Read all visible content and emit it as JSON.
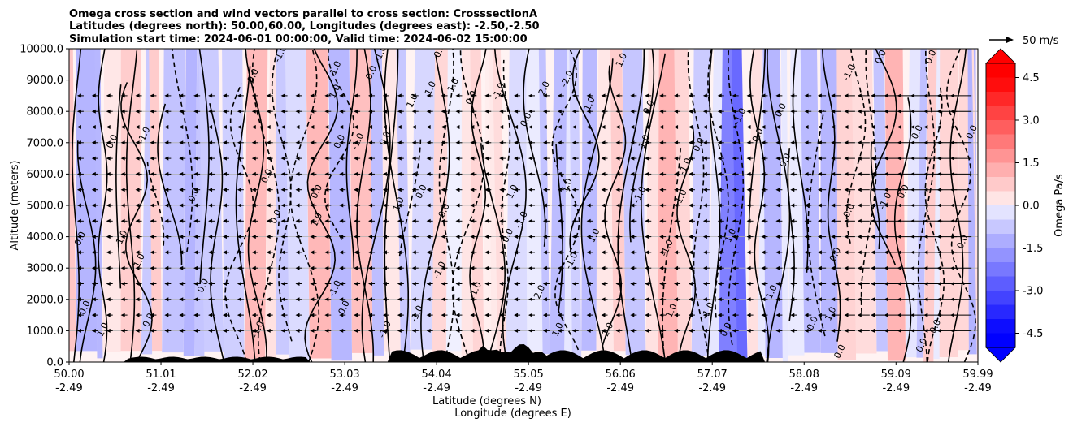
{
  "chart_data": {
    "type": "contour",
    "title_lines": [
      "Omega cross section and wind vectors parallel to cross section: CrosssectionA",
      "Latitudes (degrees north): 50.00,60.00, Longitudes (degrees east): -2.50,-2.50",
      "Simulation start time: 2024-06-01 00:00:00, Valid time: 2024-06-02 15:00:00"
    ],
    "ylabel": "Altitude (meters)",
    "xlabel_lat": "Latitude (degrees N)",
    "xlabel_lon": "Longitude (degrees E)",
    "ylim": [
      0,
      10000
    ],
    "y_ticks": [
      "0.0",
      "1000.0",
      "2000.0",
      "3000.0",
      "4000.0",
      "5000.0",
      "6000.0",
      "7000.0",
      "8000.0",
      "9000.0",
      "10000.0"
    ],
    "y_tick_values": [
      0,
      1000,
      2000,
      3000,
      4000,
      5000,
      6000,
      7000,
      8000,
      9000,
      10000
    ],
    "xlim": [
      50.0,
      59.99
    ],
    "x_tick_values": [
      50.0,
      51.01,
      52.02,
      53.03,
      54.04,
      55.05,
      56.06,
      57.07,
      58.08,
      59.09,
      59.99
    ],
    "x_tick_lat": [
      "50.00",
      "51.01",
      "52.02",
      "53.03",
      "54.04",
      "55.05",
      "56.06",
      "57.07",
      "58.08",
      "59.09",
      "59.99"
    ],
    "x_tick_lon": [
      "-2.49",
      "-2.49",
      "-2.49",
      "-2.49",
      "-2.49",
      "-2.49",
      "-2.49",
      "-2.49",
      "-2.49",
      "-2.49",
      "-2.49"
    ],
    "grid": true,
    "colorbar": {
      "label": "Omega Pa/s",
      "range": [
        -5.0,
        5.0
      ],
      "ticks": [
        "4.5",
        "3.0",
        "1.5",
        "0.0",
        "-1.5",
        "-3.0",
        "-4.5"
      ],
      "tick_values": [
        4.5,
        3.0,
        1.5,
        0.0,
        -1.5,
        -3.0,
        -4.5
      ],
      "extend": "both"
    },
    "quiver_key": {
      "label": "50 m/s",
      "speed": 50
    },
    "contour_levels": [
      -2.0,
      -1.0,
      0.0,
      1.0,
      2.0
    ],
    "contour_labels": [
      {
        "text": "0.0",
        "lat": 50.15,
        "z": 3900
      },
      {
        "text": "0.0",
        "lat": 50.2,
        "z": 1700
      },
      {
        "text": "1.0",
        "lat": 50.4,
        "z": 1000
      },
      {
        "text": "0.0",
        "lat": 50.5,
        "z": 7000
      },
      {
        "text": "0.0",
        "lat": 50.9,
        "z": 1300
      },
      {
        "text": "1.0",
        "lat": 50.8,
        "z": 3200
      },
      {
        "text": "-1.0",
        "lat": 50.6,
        "z": 3900
      },
      {
        "text": "-1.0",
        "lat": 50.85,
        "z": 7200
      },
      {
        "text": "0.0",
        "lat": 51.4,
        "z": 5300
      },
      {
        "text": "0.0",
        "lat": 51.5,
        "z": 2400
      },
      {
        "text": "-1.0",
        "lat": 52.1,
        "z": 1000
      },
      {
        "text": "0.0",
        "lat": 52.2,
        "z": 5900
      },
      {
        "text": "0.0",
        "lat": 52.05,
        "z": 9100
      },
      {
        "text": "0.0",
        "lat": 52.3,
        "z": 4600
      },
      {
        "text": "-1.0",
        "lat": 52.35,
        "z": 9800
      },
      {
        "text": "0.0",
        "lat": 52.75,
        "z": 5400
      },
      {
        "text": "1.0",
        "lat": 52.75,
        "z": 4500
      },
      {
        "text": "1.0",
        "lat": 52.95,
        "z": 8600
      },
      {
        "text": "-1.0",
        "lat": 52.95,
        "z": 9300
      },
      {
        "text": "0.0",
        "lat": 53.0,
        "z": 7000
      },
      {
        "text": "-1.0",
        "lat": 52.95,
        "z": 2300
      },
      {
        "text": "0.0",
        "lat": 53.05,
        "z": 1700
      },
      {
        "text": "-1.0",
        "lat": 53.2,
        "z": 7000
      },
      {
        "text": "0.0",
        "lat": 53.35,
        "z": 9200
      },
      {
        "text": "-1.0",
        "lat": 53.45,
        "z": 9800
      },
      {
        "text": "0.0",
        "lat": 53.5,
        "z": 7100
      },
      {
        "text": "-1.0",
        "lat": 53.5,
        "z": 1000
      },
      {
        "text": "0.0",
        "lat": 53.9,
        "z": 5400
      },
      {
        "text": "1.0",
        "lat": 53.8,
        "z": 8300
      },
      {
        "text": "1.0",
        "lat": 53.65,
        "z": 5000
      },
      {
        "text": "-1.0",
        "lat": 53.85,
        "z": 1500
      },
      {
        "text": "1.0",
        "lat": 54.0,
        "z": 8700
      },
      {
        "text": "-1.0",
        "lat": 54.1,
        "z": 2900
      },
      {
        "text": "0.0",
        "lat": 54.15,
        "z": 4800
      },
      {
        "text": "0.0",
        "lat": 54.1,
        "z": 9900
      },
      {
        "text": "1.0",
        "lat": 54.5,
        "z": 2300
      },
      {
        "text": "1.0",
        "lat": 54.25,
        "z": 8800
      },
      {
        "text": "0.0",
        "lat": 54.45,
        "z": 8400
      },
      {
        "text": "-1.0",
        "lat": 54.75,
        "z": 8600
      },
      {
        "text": "0.0",
        "lat": 54.85,
        "z": 4000
      },
      {
        "text": "1.0",
        "lat": 54.9,
        "z": 5400
      },
      {
        "text": "-1.0",
        "lat": 55.0,
        "z": 4500
      },
      {
        "text": "0.0",
        "lat": 55.05,
        "z": 7700
      },
      {
        "text": "2.0",
        "lat": 55.2,
        "z": 2200
      },
      {
        "text": "2.0",
        "lat": 55.25,
        "z": 8700
      },
      {
        "text": "1.0",
        "lat": 55.4,
        "z": 1000
      },
      {
        "text": "1.0",
        "lat": 55.5,
        "z": 5600
      },
      {
        "text": "-2.0",
        "lat": 55.5,
        "z": 9000
      },
      {
        "text": "-1.0",
        "lat": 55.55,
        "z": 3200
      },
      {
        "text": "1.0",
        "lat": 55.75,
        "z": 8200
      },
      {
        "text": "1.0",
        "lat": 55.8,
        "z": 4000
      },
      {
        "text": "2.0",
        "lat": 55.95,
        "z": 1000
      },
      {
        "text": "1.0",
        "lat": 56.1,
        "z": 9600
      },
      {
        "text": "-1.0",
        "lat": 56.3,
        "z": 5300
      },
      {
        "text": "1.0",
        "lat": 56.35,
        "z": 7000
      },
      {
        "text": "0.0",
        "lat": 56.4,
        "z": 8100
      },
      {
        "text": "-1.0",
        "lat": 56.6,
        "z": 3600
      },
      {
        "text": "1.0",
        "lat": 56.65,
        "z": 1600
      },
      {
        "text": "-1.0",
        "lat": 56.75,
        "z": 5200
      },
      {
        "text": "-1.0",
        "lat": 56.8,
        "z": 6200
      },
      {
        "text": "0.0",
        "lat": 56.95,
        "z": 6900
      },
      {
        "text": "-1.0",
        "lat": 57.05,
        "z": 1600
      },
      {
        "text": "1.0",
        "lat": 57.3,
        "z": 4000
      },
      {
        "text": "-1.0",
        "lat": 57.4,
        "z": 7800
      },
      {
        "text": "0.0",
        "lat": 57.25,
        "z": 1000
      },
      {
        "text": "0.0",
        "lat": 57.6,
        "z": 7200
      },
      {
        "text": "1.0",
        "lat": 57.75,
        "z": 2200
      },
      {
        "text": "0.0",
        "lat": 57.85,
        "z": 8000
      },
      {
        "text": "0.0",
        "lat": 57.9,
        "z": 6400
      },
      {
        "text": "0.0",
        "lat": 58.2,
        "z": 1200
      },
      {
        "text": "0.0",
        "lat": 58.45,
        "z": 3400
      },
      {
        "text": "1.0",
        "lat": 58.4,
        "z": 1500
      },
      {
        "text": "0.0",
        "lat": 58.6,
        "z": 4800
      },
      {
        "text": "-1.0",
        "lat": 58.6,
        "z": 9200
      },
      {
        "text": "0.0",
        "lat": 58.95,
        "z": 9700
      },
      {
        "text": "-1.0",
        "lat": 59.0,
        "z": 5100
      },
      {
        "text": "0.0",
        "lat": 59.2,
        "z": 5400
      },
      {
        "text": "0.0",
        "lat": 59.35,
        "z": 7300
      },
      {
        "text": "0.0",
        "lat": 59.4,
        "z": 500
      },
      {
        "text": "0.0",
        "lat": 59.5,
        "z": 9700
      },
      {
        "text": "0.0",
        "lat": 59.55,
        "z": 1100
      },
      {
        "text": "0.0",
        "lat": 59.85,
        "z": 3800
      },
      {
        "text": "0.0",
        "lat": 59.95,
        "z": 7300
      },
      {
        "text": "0.0",
        "lat": 58.5,
        "z": 300
      }
    ]
  },
  "colors": {
    "positive_strong": "#ff0000",
    "positive_mid": "#ff9a9a",
    "positive_weak": "#ffe6e6",
    "negative_weak": "#eaeaff",
    "negative_mid": "#9a9aff",
    "negative_strong": "#0000ff",
    "terrain": "#000000"
  }
}
